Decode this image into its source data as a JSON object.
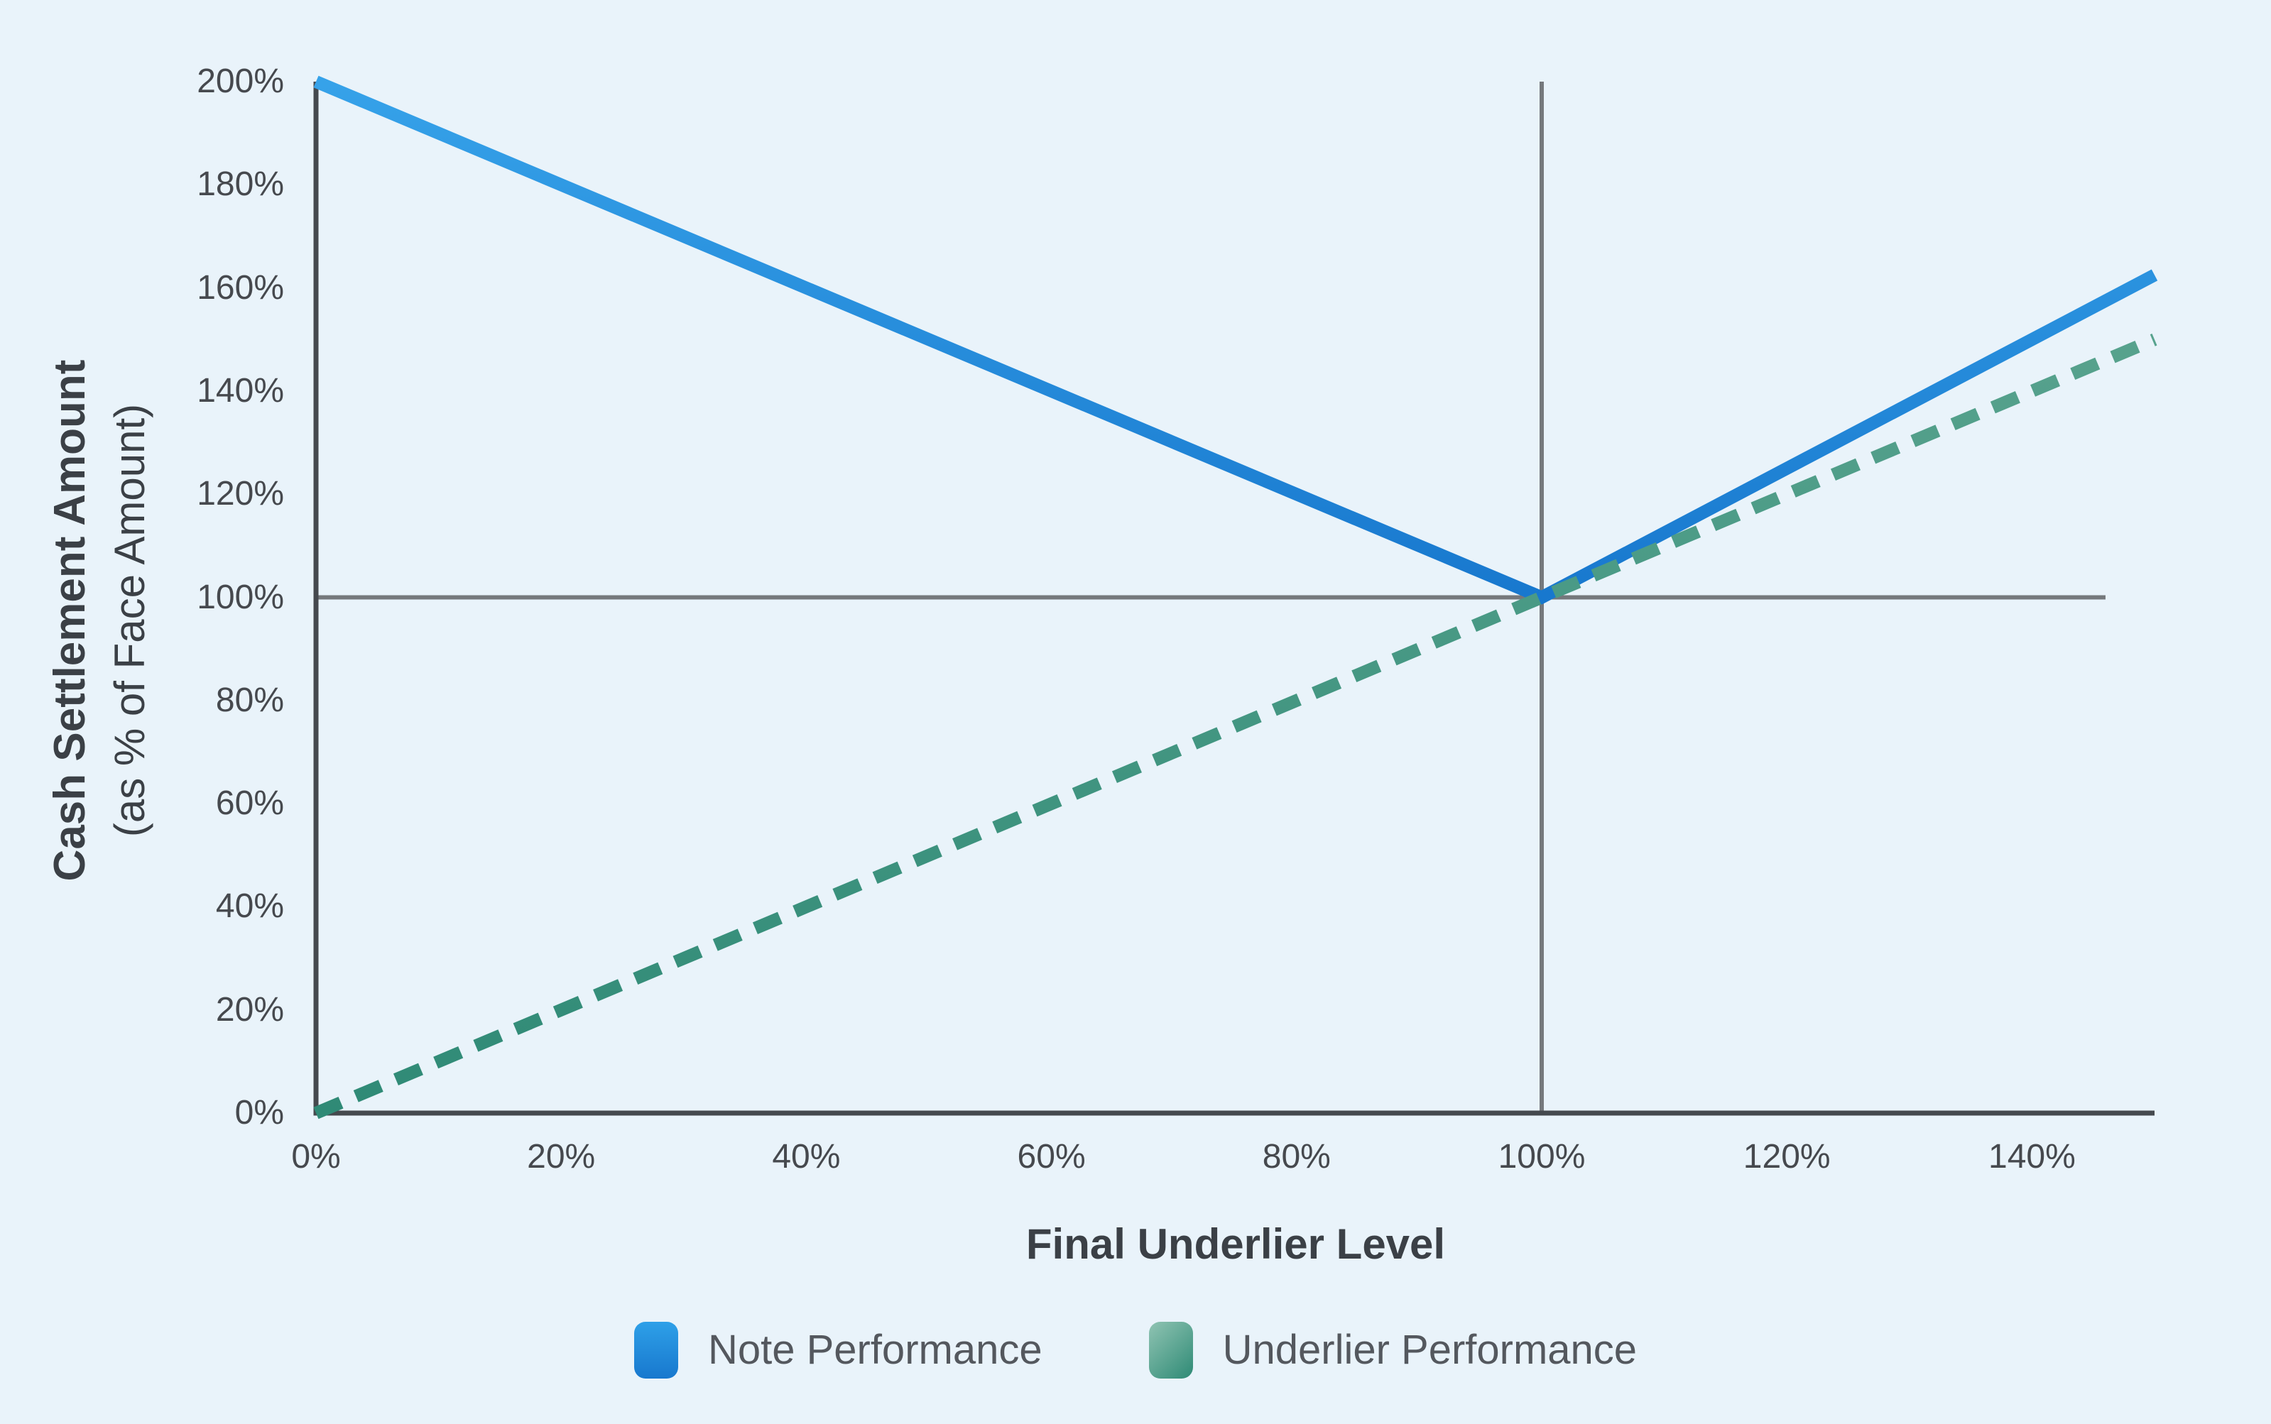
{
  "chart_data": {
    "type": "line",
    "title": "",
    "xlabel": "Final Underlier Level",
    "ylabel_line1": "Cash Settlement Amount",
    "ylabel_line2": "(as % of Face Amount)",
    "xlim": [
      0,
      150
    ],
    "ylim": [
      0,
      200
    ],
    "grid": false,
    "x_ticks": [
      {
        "value": 0,
        "label": "0%"
      },
      {
        "value": 20,
        "label": "20%"
      },
      {
        "value": 40,
        "label": "40%"
      },
      {
        "value": 60,
        "label": "60%"
      },
      {
        "value": 80,
        "label": "80%"
      },
      {
        "value": 100,
        "label": "100%"
      },
      {
        "value": 120,
        "label": "120%"
      },
      {
        "value": 140,
        "label": "140%"
      }
    ],
    "y_ticks": [
      {
        "value": 0,
        "label": "0%"
      },
      {
        "value": 20,
        "label": "20%"
      },
      {
        "value": 40,
        "label": "40%"
      },
      {
        "value": 60,
        "label": "60%"
      },
      {
        "value": 80,
        "label": "80%"
      },
      {
        "value": 100,
        "label": "100%"
      },
      {
        "value": 120,
        "label": "120%"
      },
      {
        "value": 140,
        "label": "140%"
      },
      {
        "value": 160,
        "label": "160%"
      },
      {
        "value": 180,
        "label": "180%"
      },
      {
        "value": 200,
        "label": "200%"
      }
    ],
    "reference_lines": {
      "horizontal": {
        "y": 100,
        "x_range": [
          0,
          146
        ]
      },
      "vertical": {
        "x": 100,
        "y_range": [
          0,
          200
        ]
      }
    },
    "series": [
      {
        "name": "Note Performance",
        "style": "solid",
        "points": [
          [
            0,
            200
          ],
          [
            100,
            100
          ],
          [
            150,
            162.5
          ]
        ],
        "gradient": [
          "#36A2E9",
          "#1878CE"
        ]
      },
      {
        "name": "Underlier Performance",
        "style": "dashed",
        "points": [
          [
            0,
            0
          ],
          [
            150,
            150
          ]
        ],
        "gradient": [
          "#57A28D",
          "#2F8A76"
        ]
      }
    ],
    "legend_position": "bottom-center"
  },
  "colors": {
    "background": "#E9F3FA",
    "axis": "#45494E",
    "reference_line": "#75787C",
    "tick_text": "#46494E",
    "title_text": "#3B4046",
    "legend_text": "#54585E",
    "legend_note_gradient": [
      "#2EA0E8",
      "#1878CE"
    ],
    "legend_underlier_gradient": [
      "#90C4B3",
      "#2E8A75"
    ]
  }
}
